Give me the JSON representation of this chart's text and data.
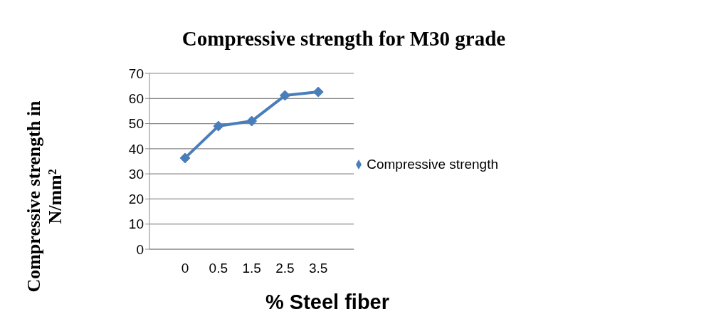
{
  "chart_data": {
    "type": "line",
    "title": "Compressive strength for M30 grade",
    "xlabel": "% Steel fiber",
    "ylabel": "Compressive strength in N/mm²",
    "categories": [
      "0",
      "0.5",
      "1.5",
      "2.5",
      "3.5"
    ],
    "series": [
      {
        "name": "Compressive strength",
        "color": "#4a7ebb",
        "values": [
          36.3,
          49.0,
          51.0,
          61.2,
          62.6
        ]
      }
    ],
    "ylim": [
      0,
      70
    ],
    "yticks": [
      0,
      10,
      20,
      30,
      40,
      50,
      60,
      70
    ],
    "grid": "y",
    "legend": "right",
    "marker": "diamond",
    "line_style": "solid"
  }
}
